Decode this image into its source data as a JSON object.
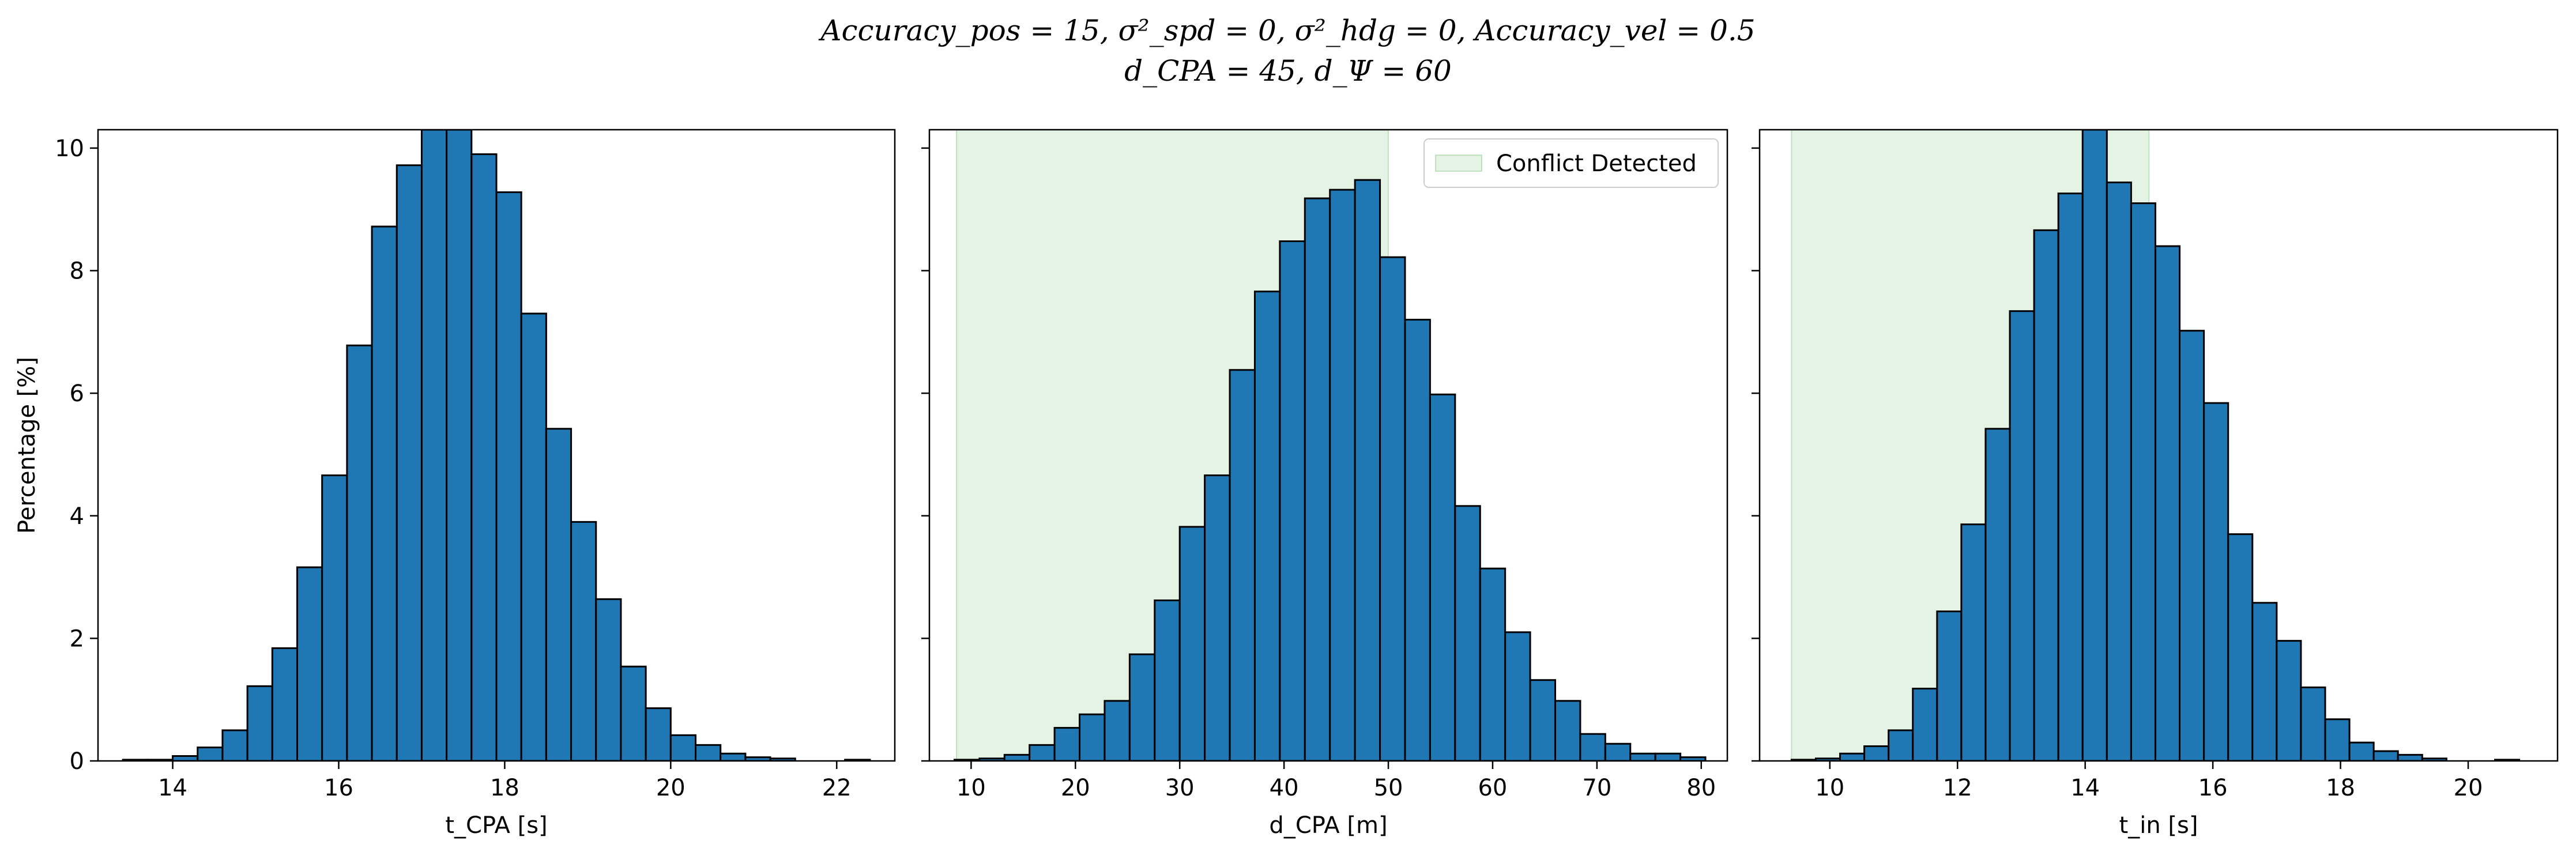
{
  "title_line1": "Accuracy_pos = 15, σ²_spd = 0, σ²_hdg = 0, Accuracy_vel = 0.5",
  "title_line2": "d_CPA = 45, d_Ψ = 60",
  "colors": {
    "bar_fill": "#1f77b4",
    "bar_edge": "#000000",
    "conflict_fill": "#2ca02c"
  },
  "chart_data": [
    {
      "type": "bar",
      "xlabel": "t_CPA [s]",
      "ylabel": "Percentage [%]",
      "xlim": [
        13.1,
        22.7
      ],
      "ylim": [
        0,
        10.3
      ],
      "xticks": [
        14,
        16,
        18,
        20,
        22
      ],
      "yticks": [
        0,
        2,
        4,
        6,
        8,
        10
      ],
      "bin_edges": [
        13.4,
        13.7,
        14.0,
        14.3,
        14.6,
        14.9,
        15.2,
        15.5,
        15.8,
        16.1,
        16.4,
        16.7,
        17.0,
        17.3,
        17.6,
        17.9,
        18.2,
        18.5,
        18.8,
        19.1,
        19.4,
        19.7,
        20.0,
        20.3,
        20.6,
        20.9,
        21.2,
        21.5,
        21.8,
        22.1,
        22.4
      ],
      "values": [
        0.02,
        0.02,
        0.08,
        0.22,
        0.5,
        1.22,
        1.84,
        3.16,
        4.66,
        6.78,
        8.72,
        9.72,
        10.3,
        10.3,
        9.9,
        9.28,
        7.3,
        5.42,
        3.9,
        2.64,
        1.54,
        0.86,
        0.42,
        0.26,
        0.12,
        0.06,
        0.04,
        0.0,
        0.0,
        0.02
      ],
      "legend": null,
      "conflict_region": null,
      "grid": false
    },
    {
      "type": "bar",
      "xlabel": "d_CPA [m]",
      "ylabel": "",
      "xlim": [
        6.0,
        82.5
      ],
      "ylim": [
        0,
        10.3
      ],
      "xticks": [
        10,
        20,
        30,
        40,
        50,
        60,
        70,
        80
      ],
      "yticks": [
        0,
        2,
        4,
        6,
        8,
        10
      ],
      "bin_edges": [
        8.4,
        10.8,
        13.2,
        15.6,
        18.0,
        20.4,
        22.8,
        25.2,
        27.6,
        30.0,
        32.4,
        34.8,
        37.2,
        39.6,
        42.0,
        44.4,
        46.8,
        49.2,
        51.6,
        54.0,
        56.4,
        58.8,
        61.2,
        63.6,
        66.0,
        68.4,
        70.8,
        73.2,
        75.6,
        78.0,
        80.4
      ],
      "values": [
        0.02,
        0.04,
        0.1,
        0.26,
        0.54,
        0.76,
        0.98,
        1.74,
        2.62,
        3.82,
        4.66,
        6.38,
        7.66,
        8.48,
        9.18,
        9.32,
        9.48,
        8.22,
        7.2,
        5.98,
        4.16,
        3.14,
        2.1,
        1.32,
        0.98,
        0.44,
        0.28,
        0.12,
        0.12,
        0.06
      ],
      "legend": {
        "label": "Conflict Detected",
        "position": "upper right"
      },
      "conflict_region": [
        8.6,
        50.0
      ],
      "grid": false
    },
    {
      "type": "bar",
      "xlabel": "t_in [s]",
      "ylabel": "",
      "xlim": [
        8.9,
        21.4
      ],
      "ylim": [
        0,
        10.3
      ],
      "xticks": [
        10,
        12,
        14,
        16,
        18,
        20
      ],
      "yticks": [
        0,
        2,
        4,
        6,
        8,
        10
      ],
      "bin_edges": [
        9.4,
        9.78,
        10.16,
        10.54,
        10.92,
        11.3,
        11.68,
        12.06,
        12.44,
        12.82,
        13.2,
        13.58,
        13.96,
        14.34,
        14.72,
        15.1,
        15.48,
        15.86,
        16.24,
        16.62,
        17.0,
        17.38,
        17.76,
        18.14,
        18.52,
        18.9,
        19.28,
        19.66,
        20.04,
        20.42,
        20.8
      ],
      "values": [
        0.02,
        0.04,
        0.12,
        0.24,
        0.5,
        1.18,
        2.44,
        3.86,
        5.42,
        7.34,
        8.66,
        9.26,
        10.3,
        9.44,
        9.1,
        8.4,
        7.02,
        5.84,
        3.7,
        2.58,
        1.96,
        1.2,
        0.68,
        0.3,
        0.16,
        0.1,
        0.04,
        0.0,
        0.0,
        0.02
      ],
      "legend": null,
      "conflict_region": [
        9.4,
        15.0
      ],
      "grid": false
    }
  ]
}
